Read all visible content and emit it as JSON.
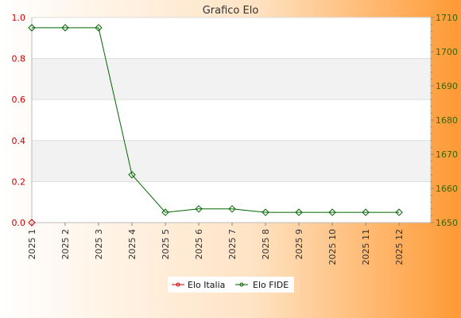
{
  "chart_data": {
    "type": "line",
    "title": "Grafico Elo",
    "categories": [
      "2025 1",
      "2025 2",
      "2025 3",
      "2025 4",
      "2025 5",
      "2025 6",
      "2025 7",
      "2025 8",
      "2025 9",
      "2025 10",
      "2025 11",
      "2025 12"
    ],
    "left_axis": {
      "ylim": [
        0,
        1.0
      ],
      "ticks": [
        "0.0",
        "0.2",
        "0.4",
        "0.6",
        "0.8",
        "1.0"
      ],
      "color": "#cc0000"
    },
    "right_axis": {
      "ylim": [
        1650,
        1710
      ],
      "ticks": [
        "1650",
        "1660",
        "1670",
        "1680",
        "1690",
        "1700",
        "1710"
      ],
      "color": "#336600"
    },
    "series": [
      {
        "name": "Elo Italia",
        "axis": "left",
        "color": "#cc0000",
        "values": [
          0,
          null,
          null,
          null,
          null,
          null,
          null,
          null,
          null,
          null,
          null,
          null
        ]
      },
      {
        "name": "Elo FIDE",
        "axis": "right",
        "color": "#006600",
        "values": [
          1707,
          1707,
          1707,
          1664,
          1653,
          1654,
          1654,
          1653,
          1653,
          1653,
          1653,
          1653
        ]
      }
    ],
    "grid": true,
    "legend_position": "bottom-center"
  },
  "colors": {
    "background_start": "#ffffff",
    "background_end": "#ff9933",
    "band": "#f2f2f2"
  }
}
